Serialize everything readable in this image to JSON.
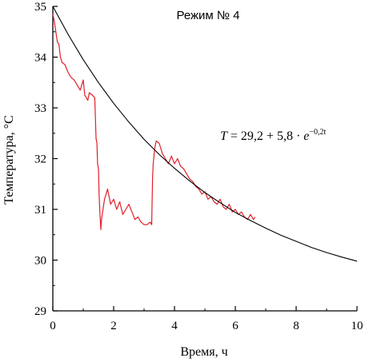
{
  "chart_data": {
    "type": "line",
    "title": "Режим № 4",
    "xlabel": "Время, ч",
    "ylabel": "Температура, °С",
    "xlim": [
      0,
      10
    ],
    "ylim": [
      29,
      35
    ],
    "x_ticks": [
      0,
      2,
      4,
      6,
      8,
      10
    ],
    "y_ticks": [
      29,
      30,
      31,
      32,
      33,
      34,
      35
    ],
    "grid": false,
    "annotation": {
      "lhs": "T",
      "rhs": " = 29,2 + 5,8 · ",
      "base": "e",
      "exponent": "−0,2t"
    },
    "series": [
      {
        "color": "#e0202a",
        "x": [
          0.0,
          0.05,
          0.1,
          0.15,
          0.2,
          0.25,
          0.3,
          0.4,
          0.5,
          0.6,
          0.7,
          0.8,
          0.9,
          1.0,
          1.05,
          1.1,
          1.15,
          1.2,
          1.3,
          1.38,
          1.42,
          1.45,
          1.47,
          1.5,
          1.52,
          1.55,
          1.58,
          1.6,
          1.65,
          1.7,
          1.8,
          1.9,
          2.0,
          2.1,
          2.2,
          2.3,
          2.4,
          2.5,
          2.6,
          2.7,
          2.8,
          2.9,
          3.0,
          3.1,
          3.2,
          3.25,
          3.28,
          3.3,
          3.35,
          3.4,
          3.5,
          3.6,
          3.7,
          3.8,
          3.9,
          4.0,
          4.1,
          4.2,
          4.3,
          4.4,
          4.5,
          4.6,
          4.7,
          4.8,
          4.9,
          5.0,
          5.1,
          5.2,
          5.3,
          5.4,
          5.5,
          5.6,
          5.7,
          5.8,
          5.9,
          6.0,
          6.1,
          6.2,
          6.3,
          6.4,
          6.5,
          6.6,
          6.65
        ],
        "y": [
          34.85,
          34.7,
          34.5,
          34.3,
          34.25,
          34.0,
          33.9,
          33.85,
          33.7,
          33.6,
          33.55,
          33.45,
          33.35,
          33.55,
          33.25,
          33.2,
          33.15,
          33.3,
          33.25,
          33.2,
          32.4,
          32.3,
          31.9,
          31.8,
          31.3,
          30.9,
          30.6,
          30.8,
          31.0,
          31.2,
          31.4,
          31.1,
          31.2,
          31.0,
          31.15,
          30.9,
          31.0,
          31.1,
          30.95,
          30.8,
          30.85,
          30.75,
          30.7,
          30.7,
          30.75,
          30.7,
          31.6,
          31.9,
          32.2,
          32.35,
          32.3,
          32.1,
          32.0,
          31.9,
          32.05,
          31.9,
          32.0,
          31.85,
          31.8,
          31.7,
          31.6,
          31.55,
          31.45,
          31.4,
          31.3,
          31.35,
          31.2,
          31.25,
          31.15,
          31.1,
          31.2,
          31.05,
          31.0,
          31.1,
          30.95,
          31.0,
          30.9,
          30.95,
          30.85,
          30.8,
          30.9,
          30.8,
          30.85
        ]
      },
      {
        "color": "#000000",
        "function": "29.2 + 5.8 * exp(-0.2 * t)",
        "x": [
          0,
          0.5,
          1,
          1.5,
          2,
          2.5,
          3,
          3.5,
          4,
          4.5,
          5,
          5.5,
          6,
          6.5,
          7,
          7.5,
          8,
          8.5,
          9,
          9.5,
          10
        ],
        "y": [
          35.0,
          34.45,
          33.95,
          33.5,
          33.09,
          32.72,
          32.38,
          32.08,
          31.81,
          31.56,
          31.33,
          31.13,
          30.94,
          30.78,
          30.63,
          30.49,
          30.37,
          30.25,
          30.15,
          30.06,
          29.98
        ]
      }
    ]
  }
}
